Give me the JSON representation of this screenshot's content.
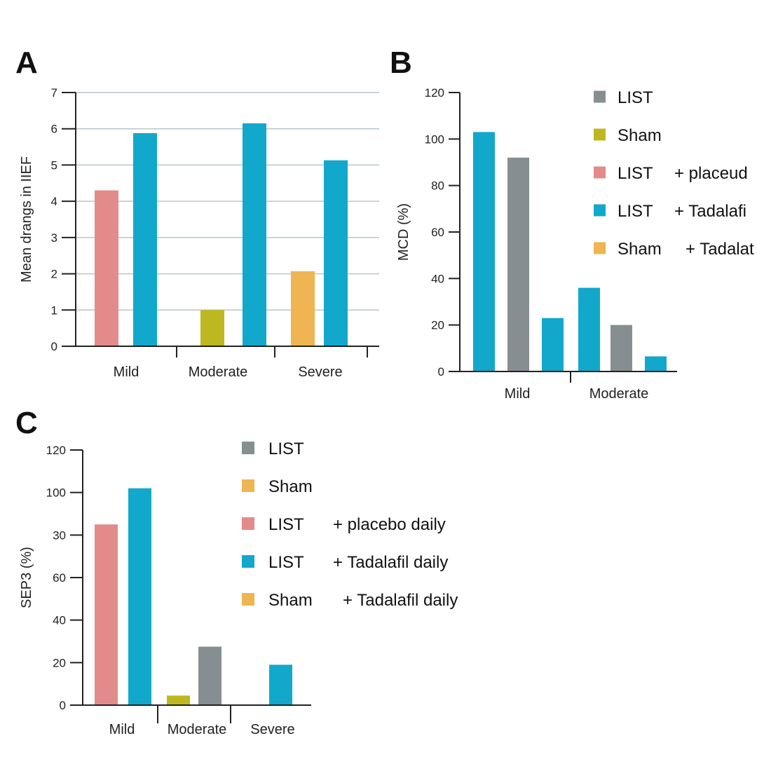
{
  "colors": {
    "LIST": "#878e91",
    "Sham": "#bdb820",
    "Sham_C": "#eeb552",
    "LIST_placebo": "#e38b8b",
    "LIST_tadalafil": "#12a8cc",
    "Sham_tadalafil": "#eeb552"
  },
  "chart_data": [
    {
      "panel": "A",
      "type": "bar",
      "title": "",
      "xlabel": "",
      "ylabel": "Mean drangs in IIEF",
      "ylim": [
        0,
        7
      ],
      "yticks": [
        "0",
        "1",
        "2",
        "3",
        "4",
        "5",
        "6",
        "7"
      ],
      "grid": true,
      "categories": [
        "Mild",
        "Moderate",
        "Severe"
      ],
      "bars": [
        {
          "category": "Mild",
          "series": "LIST + placebo daily",
          "color_key": "LIST_placebo",
          "value": 4.3
        },
        {
          "category": "Mild",
          "series": "LIST + Tadalafil daily",
          "color_key": "LIST_tadalafil",
          "value": 5.88
        },
        {
          "category": "Moderate",
          "series": "Sham",
          "color_key": "Sham",
          "value": 1.0
        },
        {
          "category": "Moderate",
          "series": "LIST + Tadalafil daily",
          "color_key": "LIST_tadalafil",
          "value": 6.15
        },
        {
          "category": "Severe",
          "series": "Sham + Tadalafil daily",
          "color_key": "Sham_tadalafil",
          "value": 2.07
        },
        {
          "category": "Severe",
          "series": "LIST + Tadalafil daily",
          "color_key": "LIST_tadalafil",
          "value": 5.13
        }
      ],
      "legend": null
    },
    {
      "panel": "B",
      "type": "bar",
      "title": "",
      "xlabel": "",
      "ylabel": "MCD (%)",
      "ylim": [
        0,
        120
      ],
      "yticks": [
        "0",
        "20",
        "40",
        "60",
        "80",
        "100",
        "120"
      ],
      "grid": false,
      "categories": [
        "Mild",
        "Moderate"
      ],
      "bars": [
        {
          "category": "Mild",
          "series": "LIST + Tadalafil",
          "color_key": "LIST_tadalafil",
          "value": 103
        },
        {
          "category": "Mild",
          "series": "LIST",
          "color_key": "LIST",
          "value": 92
        },
        {
          "category": "Mild",
          "series": "LIST + Tadalafil",
          "color_key": "LIST_tadalafil",
          "value": 23
        },
        {
          "category": "Moderate",
          "series": "LIST + Tadalafil",
          "color_key": "LIST_tadalafil",
          "value": 36
        },
        {
          "category": "Moderate",
          "series": "LIST",
          "color_key": "LIST",
          "value": 20
        },
        {
          "category": "Moderate",
          "series": "LIST + Tadalafil",
          "color_key": "LIST_tadalafil",
          "value": 6.5
        }
      ],
      "legend": {
        "placement": "top-right",
        "entries": [
          {
            "label": "LIST",
            "suffix": "",
            "color_key": "LIST"
          },
          {
            "label": "Sham",
            "suffix": "",
            "color_key": "Sham"
          },
          {
            "label": "LIST",
            "suffix": "+ placeud",
            "color_key": "LIST_placebo"
          },
          {
            "label": "LIST",
            "suffix": "+ Tadalafi",
            "color_key": "LIST_tadalafil"
          },
          {
            "label": "Sham",
            "suffix": "+ Tadalat",
            "color_key": "Sham_tadalafil"
          }
        ]
      }
    },
    {
      "panel": "C",
      "type": "bar",
      "title": "",
      "xlabel": "",
      "ylabel": "SEP3 (%)",
      "ylim": [
        0,
        120
      ],
      "yticks": [
        "0",
        "20",
        "40",
        "60",
        "30",
        "100",
        "120"
      ],
      "ytick_note": "tick labels printed as shown, evenly spaced",
      "grid": false,
      "categories": [
        "Mild",
        "Moderate",
        "Severe"
      ],
      "bars": [
        {
          "category": "Mild",
          "series": "LIST + placebo daily",
          "color_key": "LIST_placebo",
          "value": 85
        },
        {
          "category": "Mild",
          "series": "LIST + Tadalafil daily",
          "color_key": "LIST_tadalafil",
          "value": 102
        },
        {
          "category": "Moderate",
          "series": "Sham",
          "color_key": "Sham",
          "value": 4.5
        },
        {
          "category": "Moderate",
          "series": "LIST",
          "color_key": "LIST",
          "value": 27.5
        },
        {
          "category": "Severe",
          "series": "LIST + Tadalafil daily",
          "color_key": "LIST_tadalafil",
          "value": 19
        }
      ],
      "legend": {
        "placement": "top-right",
        "entries": [
          {
            "label": "LIST",
            "suffix": "",
            "color_key": "LIST"
          },
          {
            "label": "Sham",
            "suffix": "",
            "color_key": "Sham_C"
          },
          {
            "label": "LIST",
            "suffix": "+ placebo daily",
            "color_key": "LIST_placebo"
          },
          {
            "label": "LIST",
            "suffix": "+ Tadalafil daily",
            "color_key": "LIST_tadalafil"
          },
          {
            "label": "Sham",
            "suffix": "+ Tadalafil daily",
            "color_key": "Sham_tadalafil"
          }
        ]
      }
    }
  ]
}
